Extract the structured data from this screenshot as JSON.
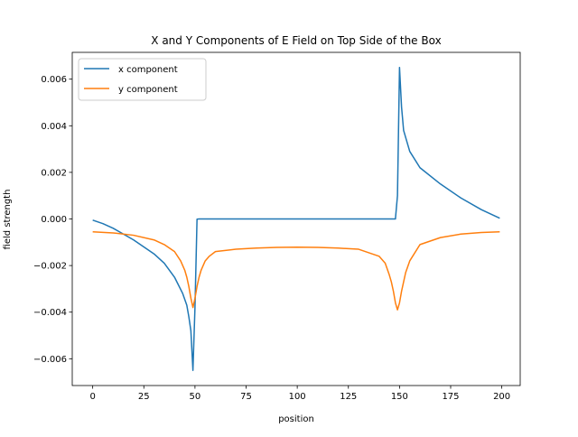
{
  "chart_data": {
    "type": "line",
    "title": "X and Y Components of E Field on Top Side of the Box",
    "xlabel": "position",
    "ylabel": "field strength",
    "xlim": [
      -10,
      209
    ],
    "ylim": [
      -0.00715,
      0.00715
    ],
    "xticks": [
      0,
      25,
      50,
      75,
      100,
      125,
      150,
      175,
      200
    ],
    "xtick_labels": [
      "0",
      "25",
      "50",
      "75",
      "100",
      "125",
      "150",
      "175",
      "200"
    ],
    "yticks": [
      -0.006,
      -0.004,
      -0.002,
      0.0,
      0.002,
      0.004,
      0.006
    ],
    "ytick_labels": [
      "−0.006",
      "−0.004",
      "−0.002",
      "0.000",
      "0.002",
      "0.004",
      "0.006"
    ],
    "grid": false,
    "legend_position": "upper-left",
    "series": [
      {
        "name": "x component",
        "color": "#1f77b4",
        "x": [
          0,
          5,
          10,
          15,
          20,
          25,
          30,
          35,
          40,
          44,
          46,
          47,
          48,
          49,
          50,
          51,
          52,
          60,
          80,
          100,
          120,
          140,
          148,
          149,
          150,
          151,
          152,
          155,
          160,
          170,
          180,
          190,
          199
        ],
        "y": [
          -5e-05,
          -0.0002,
          -0.0004,
          -0.00065,
          -0.0009,
          -0.0012,
          -0.0015,
          -0.0019,
          -0.0025,
          -0.0032,
          -0.0037,
          -0.0042,
          -0.0048,
          -0.0065,
          -0.0038,
          -1e-05,
          0.0,
          0.0,
          0.0,
          0.0,
          0.0,
          0.0,
          0.0,
          0.001,
          0.0065,
          0.0048,
          0.0038,
          0.0029,
          0.0022,
          0.0015,
          0.0009,
          0.0004,
          3e-05
        ]
      },
      {
        "name": "y component",
        "color": "#ff7f0e",
        "x": [
          0,
          10,
          20,
          30,
          35,
          40,
          43,
          45,
          46,
          47,
          48,
          49,
          50,
          51,
          52,
          53,
          55,
          57,
          60,
          70,
          80,
          90,
          100,
          110,
          120,
          130,
          140,
          143,
          145,
          146,
          147,
          148,
          149,
          150,
          151,
          152,
          153,
          155,
          160,
          170,
          180,
          190,
          199
        ],
        "y": [
          -0.00055,
          -0.0006,
          -0.0007,
          -0.0009,
          -0.0011,
          -0.0014,
          -0.0018,
          -0.0022,
          -0.0025,
          -0.0029,
          -0.0034,
          -0.0038,
          -0.0034,
          -0.0029,
          -0.0025,
          -0.0022,
          -0.0018,
          -0.0016,
          -0.0014,
          -0.0013,
          -0.00125,
          -0.00122,
          -0.00121,
          -0.00122,
          -0.00125,
          -0.0013,
          -0.0016,
          -0.0019,
          -0.0024,
          -0.0027,
          -0.0031,
          -0.0036,
          -0.0039,
          -0.0036,
          -0.0031,
          -0.0027,
          -0.0023,
          -0.0018,
          -0.0011,
          -0.0008,
          -0.00065,
          -0.00058,
          -0.00055
        ]
      }
    ]
  }
}
